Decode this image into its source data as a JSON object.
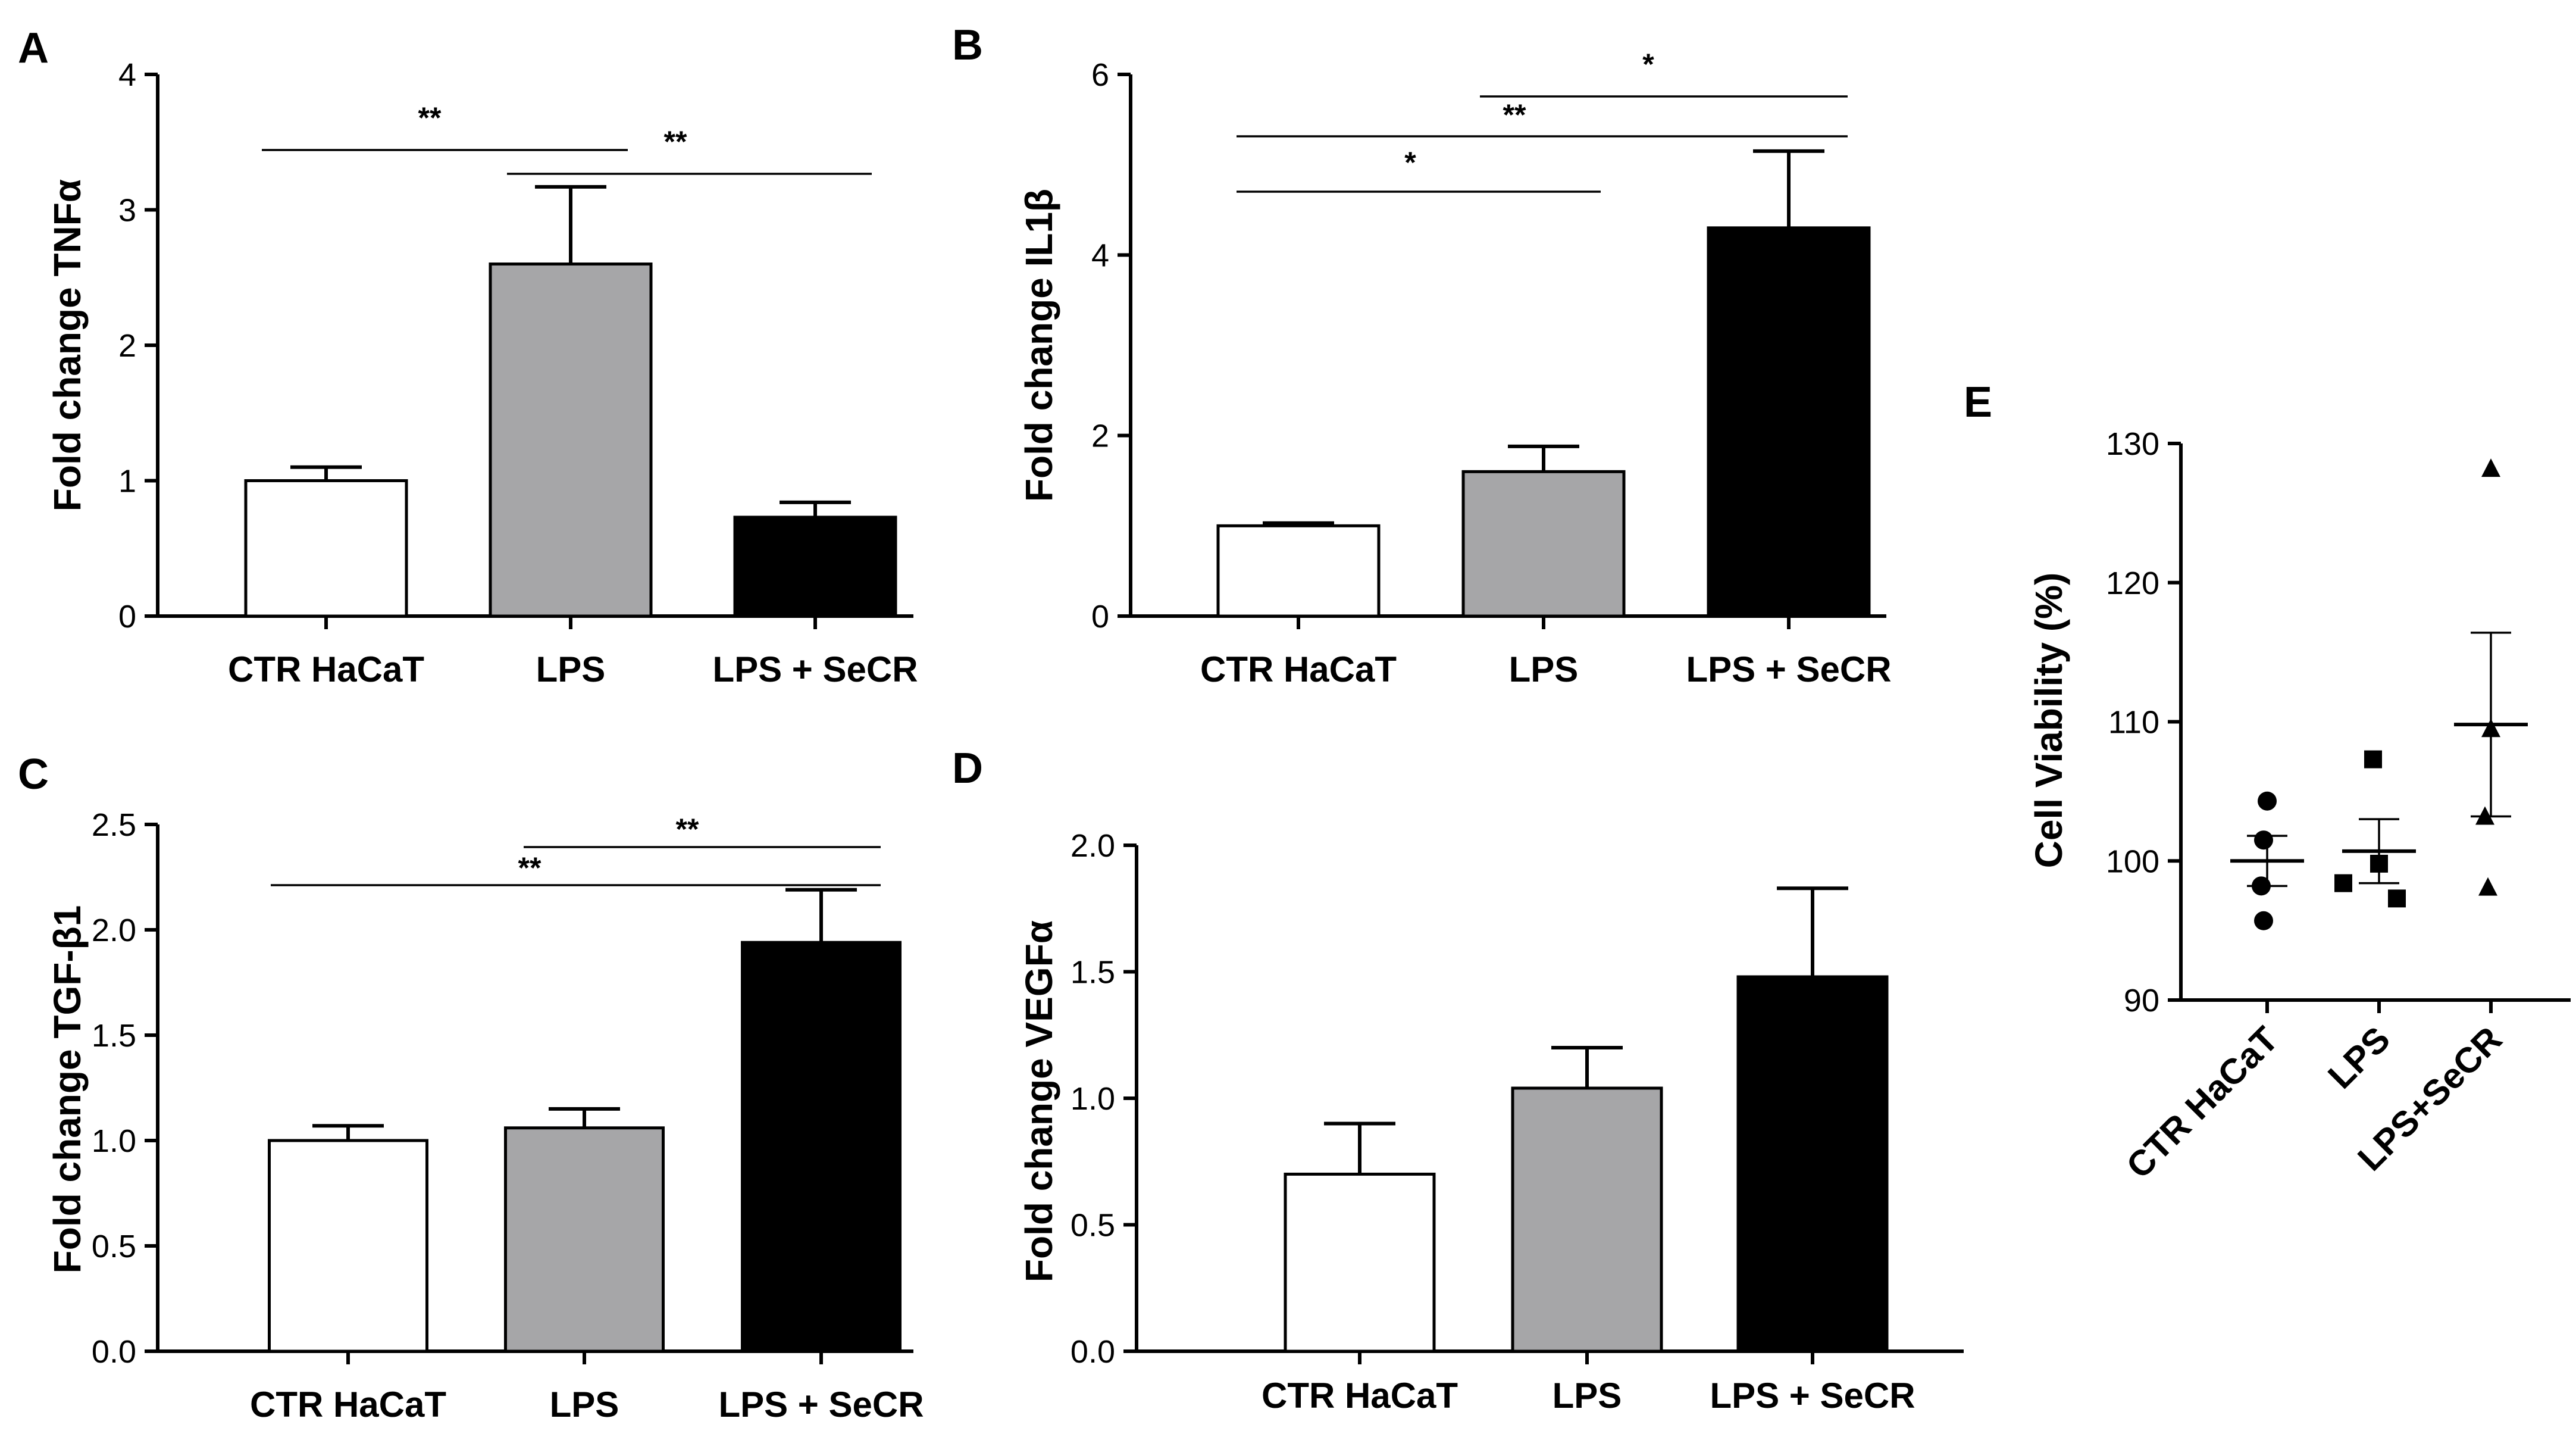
{
  "chart_data": [
    {
      "panel": "A",
      "type": "bar",
      "categories": [
        "CTR HaCaT",
        "LPS",
        "LPS + SeCR"
      ],
      "values": [
        1.0,
        2.6,
        0.73
      ],
      "errors": [
        0.1,
        0.57,
        0.11
      ],
      "colors": [
        "#ffffff",
        "#a6a6a8",
        "#000000"
      ],
      "ylabel": "Fold change TNFα",
      "ylim": [
        0,
        4
      ],
      "yticks": [
        "0",
        "1",
        "2",
        "3",
        "4"
      ],
      "significance": [
        {
          "label": "**",
          "from": 0,
          "to": 1
        },
        {
          "label": "**",
          "from": 1,
          "to": 2
        }
      ]
    },
    {
      "panel": "B",
      "type": "bar",
      "categories": [
        "CTR HaCaT",
        "LPS",
        "LPS + SeCR"
      ],
      "values": [
        1.0,
        1.6,
        4.3
      ],
      "errors": [
        0.03,
        0.28,
        0.85
      ],
      "colors": [
        "#ffffff",
        "#a6a6a8",
        "#000000"
      ],
      "ylabel": "Fold change IL1β",
      "ylim": [
        0,
        6
      ],
      "yticks": [
        "0",
        "2",
        "4",
        "6"
      ],
      "significance": [
        {
          "label": "*",
          "from": 0,
          "to": 1
        },
        {
          "label": "**",
          "from": 0,
          "to": 2
        },
        {
          "label": "*",
          "from": 1,
          "to": 2
        }
      ]
    },
    {
      "panel": "C",
      "type": "bar",
      "categories": [
        "CTR HaCaT",
        "LPS",
        "LPS + SeCR"
      ],
      "values": [
        1.0,
        1.06,
        1.94
      ],
      "errors": [
        0.07,
        0.09,
        0.25
      ],
      "colors": [
        "#ffffff",
        "#a6a6a8",
        "#000000"
      ],
      "ylabel": "Fold change TGF-β1",
      "ylim": [
        0,
        2.5
      ],
      "yticks": [
        "0.0",
        "0.5",
        "1.0",
        "1.5",
        "2.0",
        "2.5"
      ],
      "significance": [
        {
          "label": "**",
          "from": 0,
          "to": 2
        },
        {
          "label": "**",
          "from": 1,
          "to": 2
        }
      ]
    },
    {
      "panel": "D",
      "type": "bar",
      "categories": [
        "CTR HaCaT",
        "LPS",
        "LPS + SeCR"
      ],
      "values": [
        0.7,
        1.04,
        1.48
      ],
      "errors": [
        0.2,
        0.16,
        0.35
      ],
      "colors": [
        "#ffffff",
        "#a6a6a8",
        "#000000"
      ],
      "ylabel": "Fold change VEGFα",
      "ylim": [
        0,
        2.0
      ],
      "yticks": [
        "0.0",
        "0.5",
        "1.0",
        "1.5",
        "2.0"
      ],
      "significance": []
    },
    {
      "panel": "E",
      "type": "scatter",
      "categories": [
        "CTR HaCaT",
        "LPS",
        "LPS+SeCR"
      ],
      "markers": [
        "circle",
        "square",
        "triangle"
      ],
      "points": [
        [
          104.3,
          101.5,
          98.2,
          95.7
        ],
        [
          107.3,
          99.8,
          98.4,
          97.3
        ],
        [
          128.2,
          109.5,
          103.2,
          98.1
        ]
      ],
      "means": [
        100.0,
        100.7,
        109.8
      ],
      "sem": [
        1.8,
        2.3,
        6.6
      ],
      "ylabel": "Cell Viability (%)",
      "ylim": [
        90,
        130
      ],
      "yticks": [
        "90",
        "100",
        "110",
        "120",
        "130"
      ]
    }
  ]
}
